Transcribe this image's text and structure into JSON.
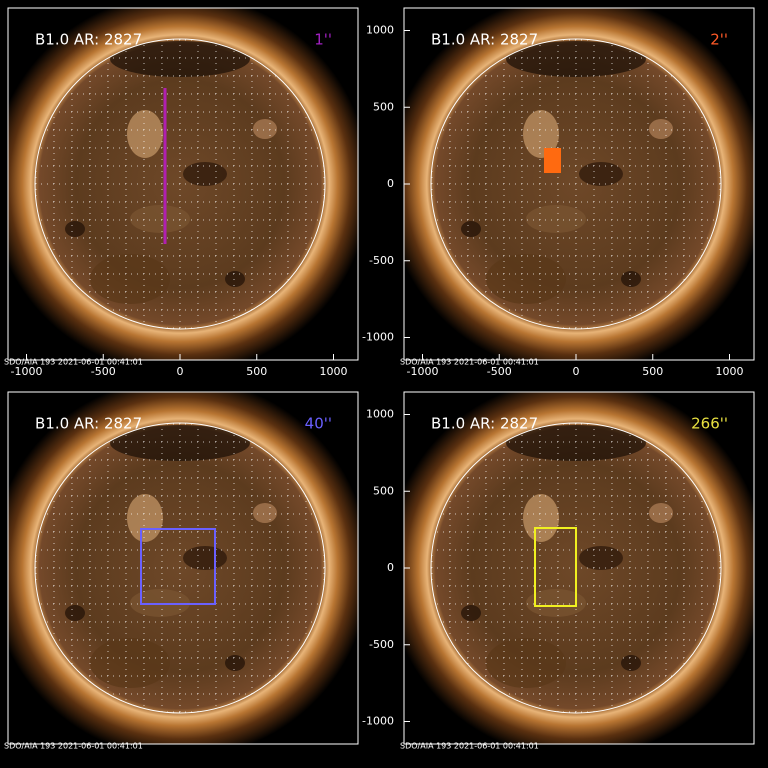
{
  "panels": [
    {
      "title": "B1.0 AR: 2827",
      "aperture": "1''",
      "footer": "SDO/AIA 193  2021-06-01 00:41:01",
      "xticks": [
        -1000,
        -500,
        0,
        500,
        1000
      ]
    },
    {
      "title": "B1.0 AR: 2827",
      "aperture": "2''",
      "footer": "SDO/AIA 193  2021-06-01 00:41:01",
      "xticks": [
        -1000,
        -500,
        0,
        500,
        1000
      ],
      "yticks": [
        1000,
        500,
        0,
        -500,
        -1000
      ]
    },
    {
      "title": "B1.0 AR: 2827",
      "aperture": "40''",
      "footer": "SDO/AIA 193  2021-06-01 00:41:01"
    },
    {
      "title": "B1.0 AR: 2827",
      "aperture": "266''",
      "footer": "SDO/AIA 193  2021-06-01 00:41:01",
      "yticks": [
        1000,
        500,
        0,
        -500,
        -1000
      ]
    }
  ]
}
